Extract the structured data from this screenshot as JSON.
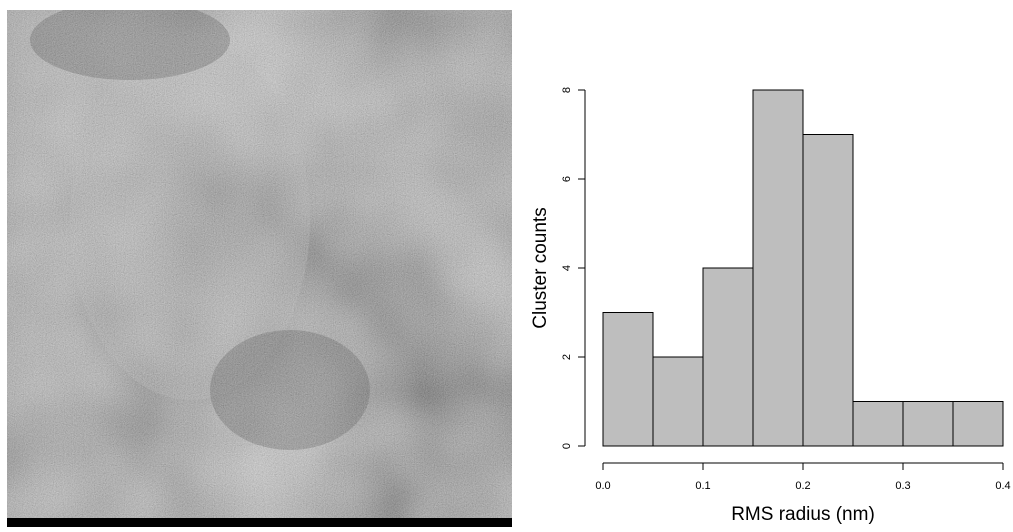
{
  "chart_data": {
    "type": "histogram",
    "bins": [
      0,
      0.05,
      0.1,
      0.15,
      0.2,
      0.25,
      0.3,
      0.35,
      0.4
    ],
    "values": [
      3,
      2,
      4,
      8,
      7,
      1,
      1,
      1
    ],
    "color": "#bebebe",
    "xlabel": "RMS radius (nm)",
    "ylabel": "Cluster counts",
    "xlim": [
      0,
      0.4
    ],
    "xticks": [
      {
        "value": 0,
        "label": "0.0"
      },
      0.1,
      0.2,
      0.3,
      0.4
    ],
    "ylim": [
      0,
      8
    ],
    "yticks": [
      0,
      2,
      4,
      6,
      8
    ]
  }
}
